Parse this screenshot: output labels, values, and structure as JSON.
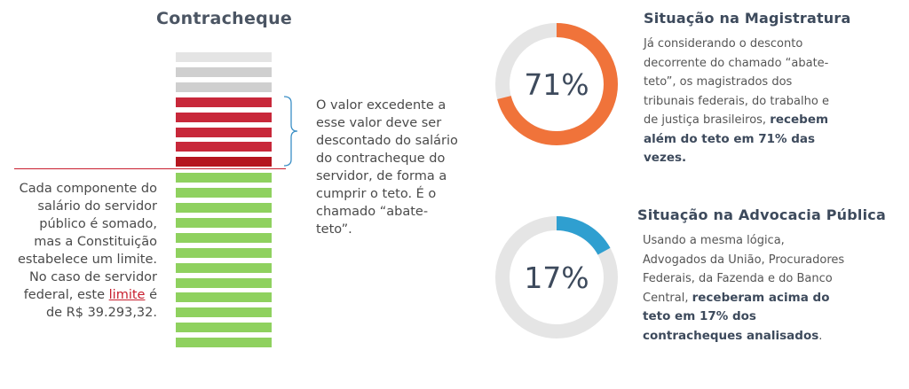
{
  "contracheque": {
    "title": "Contracheque",
    "right_note": "O valor excedente a esse valor deve ser descontado do salário do contracheque do servidor, de forma a cumprir o teto. É o chamado “abate-teto”.",
    "left_note": {
      "text_before": "Cada componente do salário do servidor público é somado, mas a Constituição estabelece um limite. No caso de servidor federal, este",
      "link": "limite",
      "text_after": "é de R$ 39.293,32."
    },
    "bars": {
      "gray": 3,
      "red": 5,
      "green": 12
    },
    "colors": {
      "gray_light": "#e4e4e4",
      "gray": "#cfcfcf",
      "red": "#c8283a",
      "red_dark": "#b5161f",
      "green": "#8fd15f",
      "teto_line": "#c81e2e",
      "bracket": "#3b8fc6"
    }
  },
  "magistratura": {
    "title": "Situação na Magistratura",
    "percent": 71,
    "percent_label": "71%",
    "color": "#f0733a",
    "body_plain": "Já considerando o desconto decorrente do chamado “abate-teto”, os magistrados dos tribunais federais, do trabalho e de justiça brasileiros,",
    "body_bold": "recebem além do teto em 71% das vezes."
  },
  "advocacia": {
    "title": "Situação na Advocacia Pública",
    "percent": 17,
    "percent_label": "17%",
    "color": "#2f9fd0",
    "body_plain": "Usando a mesma lógica, Advogados da União, Procuradores Federais, da Fazenda e do Banco Central,",
    "body_bold": "receberam acima do teto em 17% dos contracheques analisados",
    "body_end": "."
  },
  "donut_track_color": "#e5e5e5"
}
